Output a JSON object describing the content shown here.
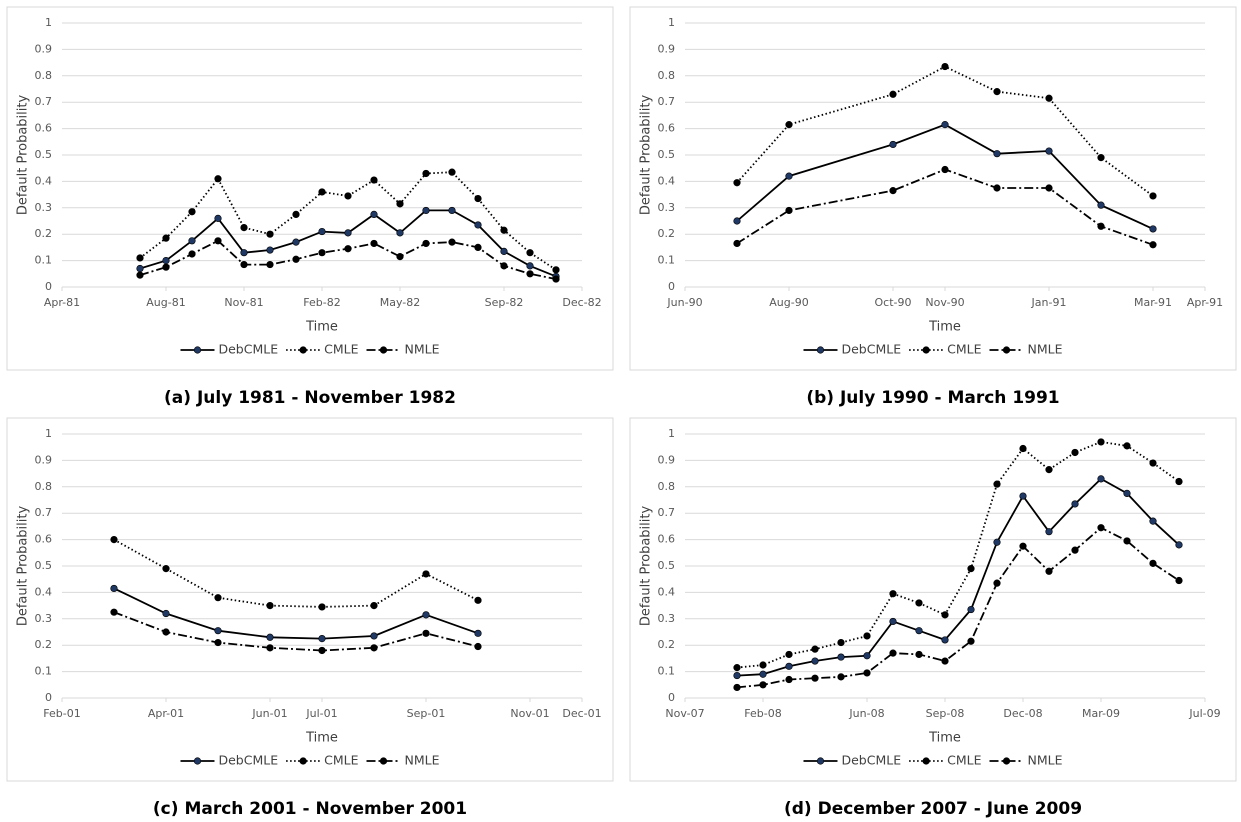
{
  "chart_data": [
    {
      "type": "line",
      "caption": "(a) July 1981 - November 1982",
      "xlabel": "Time",
      "ylabel": "Default Probability",
      "x": [
        "1981-07",
        "1981-08",
        "1981-09",
        "1981-10",
        "1981-11",
        "1981-12",
        "1982-01",
        "1982-02",
        "1982-03",
        "1982-04",
        "1982-05",
        "1982-06",
        "1982-07",
        "1982-08",
        "1982-09",
        "1982-10",
        "1982-11"
      ],
      "xlim": [
        "1981-04",
        "1982-12"
      ],
      "xticks": [
        {
          "value": "1981-04",
          "label": "Apr-81"
        },
        {
          "value": "1981-08",
          "label": "Aug-81"
        },
        {
          "value": "1981-11",
          "label": "Nov-81"
        },
        {
          "value": "1982-02",
          "label": "Feb-82"
        },
        {
          "value": "1982-05",
          "label": "May-82"
        },
        {
          "value": "1982-09",
          "label": "Sep-82"
        },
        {
          "value": "1982-12",
          "label": "Dec-82"
        }
      ],
      "ylim": [
        0,
        1
      ],
      "yticks": [
        0,
        0.1,
        0.2,
        0.3,
        0.4,
        0.5,
        0.6,
        0.7,
        0.8,
        0.9,
        1
      ],
      "grid": true,
      "series": [
        {
          "name": "DebCMLE",
          "color": "#000000",
          "marker_color": "#1f3864",
          "line_style": "solid",
          "values": [
            0.07,
            0.1,
            0.175,
            0.26,
            0.13,
            0.14,
            0.17,
            0.21,
            0.205,
            0.275,
            0.205,
            0.29,
            0.29,
            0.235,
            0.135,
            0.08,
            0.04
          ]
        },
        {
          "name": "CMLE",
          "color": "#000000",
          "marker_color": "#000000",
          "line_style": "dotted",
          "values": [
            0.11,
            0.185,
            0.285,
            0.41,
            0.225,
            0.2,
            0.275,
            0.36,
            0.345,
            0.405,
            0.315,
            0.43,
            0.435,
            0.335,
            0.215,
            0.13,
            0.065
          ]
        },
        {
          "name": "NMLE",
          "color": "#000000",
          "marker_color": "#000000",
          "line_style": "dashdot",
          "values": [
            0.045,
            0.075,
            0.125,
            0.175,
            0.085,
            0.085,
            0.105,
            0.13,
            0.145,
            0.165,
            0.115,
            0.165,
            0.17,
            0.15,
            0.08,
            0.05,
            0.03
          ]
        }
      ]
    },
    {
      "type": "line",
      "caption": "(b) July 1990 - March 1991",
      "xlabel": "Time",
      "ylabel": "Default Probability",
      "x": [
        "1990-07",
        "1990-08",
        "1990-10",
        "1990-11",
        "1990-12",
        "1991-01",
        "1991-02",
        "1991-03"
      ],
      "xlim": [
        "1990-06",
        "1991-04"
      ],
      "xticks": [
        {
          "value": "1990-06",
          "label": "Jun-90"
        },
        {
          "value": "1990-08",
          "label": "Aug-90"
        },
        {
          "value": "1990-10",
          "label": "Oct-90"
        },
        {
          "value": "1990-11",
          "label": "Nov-90"
        },
        {
          "value": "1991-01",
          "label": "Jan-91"
        },
        {
          "value": "1991-03",
          "label": "Mar-91"
        },
        {
          "value": "1991-04",
          "label": "Apr-91"
        }
      ],
      "ylim": [
        0,
        1
      ],
      "yticks": [
        0,
        0.1,
        0.2,
        0.3,
        0.4,
        0.5,
        0.6,
        0.7,
        0.8,
        0.9,
        1
      ],
      "grid": true,
      "series": [
        {
          "name": "DebCMLE",
          "color": "#000000",
          "marker_color": "#1f3864",
          "line_style": "solid",
          "values": [
            0.25,
            0.42,
            0.54,
            0.615,
            0.505,
            0.515,
            0.31,
            0.22
          ]
        },
        {
          "name": "CMLE",
          "color": "#000000",
          "marker_color": "#000000",
          "line_style": "dotted",
          "values": [
            0.395,
            0.615,
            0.73,
            0.835,
            0.74,
            0.715,
            0.49,
            0.345
          ]
        },
        {
          "name": "NMLE",
          "color": "#000000",
          "marker_color": "#000000",
          "line_style": "dashdot",
          "values": [
            0.165,
            0.29,
            0.365,
            0.445,
            0.375,
            0.375,
            0.23,
            0.16
          ]
        }
      ]
    },
    {
      "type": "line",
      "caption": "(c) March 2001 - November 2001",
      "xlabel": "Time",
      "ylabel": "Default Probability",
      "x": [
        "2001-03",
        "2001-04",
        "2001-05",
        "2001-06",
        "2001-07",
        "2001-08",
        "2001-09",
        "2001-10"
      ],
      "xlim": [
        "2001-02",
        "2001-12"
      ],
      "xticks": [
        {
          "value": "2001-02",
          "label": "Feb-01"
        },
        {
          "value": "2001-04",
          "label": "Apr-01"
        },
        {
          "value": "2001-06",
          "label": "Jun-01"
        },
        {
          "value": "2001-07",
          "label": "Jul-01"
        },
        {
          "value": "2001-09",
          "label": "Sep-01"
        },
        {
          "value": "2001-11",
          "label": "Nov-01"
        },
        {
          "value": "2001-12",
          "label": "Dec-01"
        }
      ],
      "ylim": [
        0,
        1
      ],
      "yticks": [
        0,
        0.1,
        0.2,
        0.3,
        0.4,
        0.5,
        0.6,
        0.7,
        0.8,
        0.9,
        1
      ],
      "grid": true,
      "series": [
        {
          "name": "DebCMLE",
          "color": "#000000",
          "marker_color": "#1f3864",
          "line_style": "solid",
          "values": [
            0.415,
            0.32,
            0.255,
            0.23,
            0.225,
            0.235,
            0.315,
            0.245
          ]
        },
        {
          "name": "CMLE",
          "color": "#000000",
          "marker_color": "#000000",
          "line_style": "dotted",
          "values": [
            0.6,
            0.49,
            0.38,
            0.35,
            0.345,
            0.35,
            0.47,
            0.37
          ]
        },
        {
          "name": "NMLE",
          "color": "#000000",
          "marker_color": "#000000",
          "line_style": "dashdot",
          "values": [
            0.325,
            0.25,
            0.21,
            0.19,
            0.18,
            0.19,
            0.245,
            0.195
          ]
        }
      ]
    },
    {
      "type": "line",
      "caption": "(d) December 2007 - June 2009",
      "xlabel": "Time",
      "ylabel": "Default Probability",
      "x": [
        "2008-01",
        "2008-02",
        "2008-03",
        "2008-04",
        "2008-05",
        "2008-06",
        "2008-07",
        "2008-08",
        "2008-09",
        "2008-10",
        "2008-11",
        "2008-12",
        "2009-01",
        "2009-02",
        "2009-03",
        "2009-04",
        "2009-05",
        "2009-06"
      ],
      "xlim": [
        "2007-11",
        "2009-07"
      ],
      "xticks": [
        {
          "value": "2007-11",
          "label": "Nov-07"
        },
        {
          "value": "2008-02",
          "label": "Feb-08"
        },
        {
          "value": "2008-06",
          "label": "Jun-08"
        },
        {
          "value": "2008-09",
          "label": "Sep-08"
        },
        {
          "value": "2008-12",
          "label": "Dec-08"
        },
        {
          "value": "2009-03",
          "label": "Mar-09"
        },
        {
          "value": "2009-07",
          "label": "Jul-09"
        }
      ],
      "ylim": [
        0,
        1
      ],
      "yticks": [
        0,
        0.1,
        0.2,
        0.3,
        0.4,
        0.5,
        0.6,
        0.7,
        0.8,
        0.9,
        1
      ],
      "grid": true,
      "series": [
        {
          "name": "DebCMLE",
          "color": "#000000",
          "marker_color": "#1f3864",
          "line_style": "solid",
          "values": [
            0.085,
            0.09,
            0.12,
            0.14,
            0.155,
            0.16,
            0.29,
            0.255,
            0.22,
            0.335,
            0.59,
            0.765,
            0.63,
            0.735,
            0.83,
            0.775,
            0.67,
            0.58
          ]
        },
        {
          "name": "CMLE",
          "color": "#000000",
          "marker_color": "#000000",
          "line_style": "dotted",
          "values": [
            0.115,
            0.125,
            0.165,
            0.185,
            0.21,
            0.235,
            0.395,
            0.36,
            0.315,
            0.49,
            0.81,
            0.945,
            0.865,
            0.93,
            0.97,
            0.955,
            0.89,
            0.82
          ]
        },
        {
          "name": "NMLE",
          "color": "#000000",
          "marker_color": "#000000",
          "line_style": "dashdot",
          "values": [
            0.04,
            0.05,
            0.07,
            0.075,
            0.08,
            0.095,
            0.17,
            0.165,
            0.14,
            0.215,
            0.435,
            0.575,
            0.48,
            0.56,
            0.645,
            0.595,
            0.51,
            0.445
          ]
        }
      ]
    }
  ]
}
